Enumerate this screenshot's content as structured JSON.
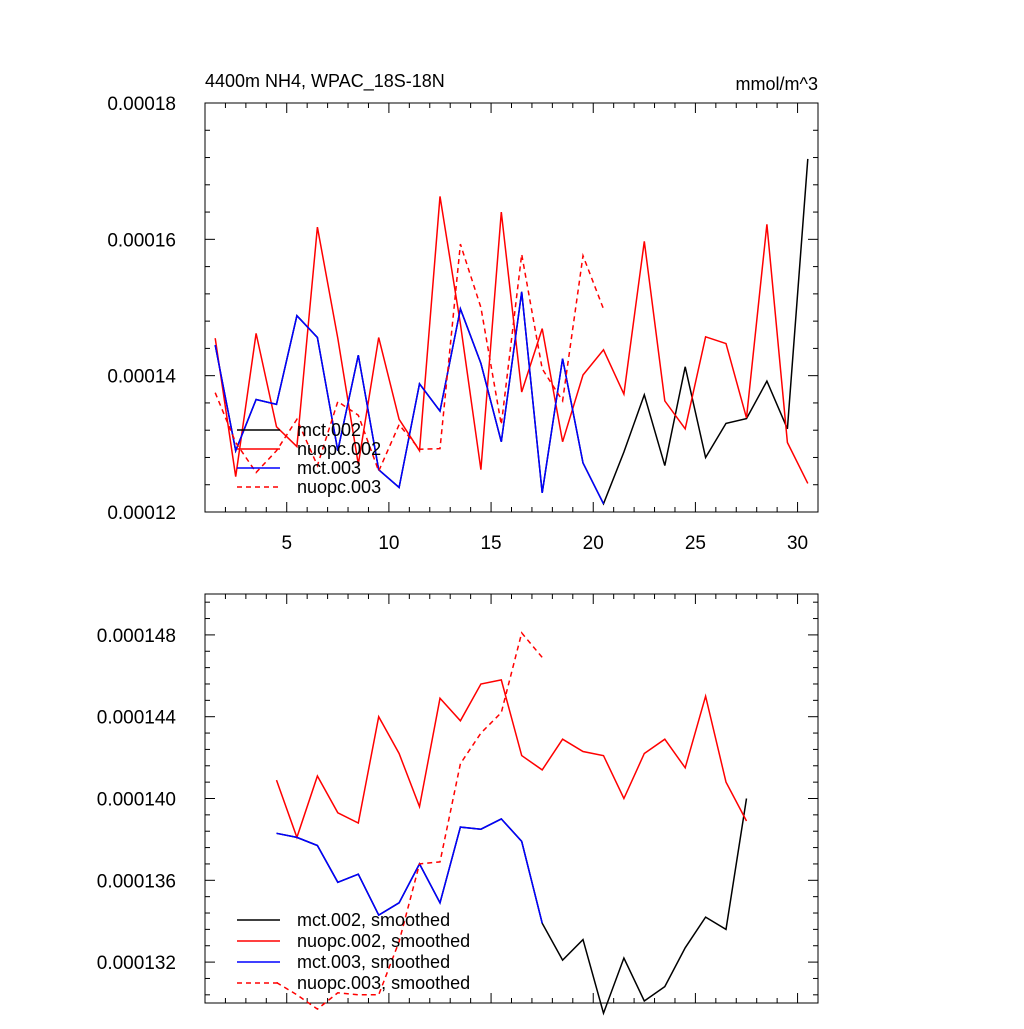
{
  "chart_data": [
    {
      "type": "line",
      "title": "4400m NH4, WPAC_18S-18N",
      "units_label": "mmol/m^3",
      "xlabel": "",
      "ylabel": "",
      "xlim": [
        1,
        31
      ],
      "ylim": [
        0.00012,
        0.00018
      ],
      "xticks": [
        5,
        10,
        15,
        20,
        25,
        30
      ],
      "xtick_labels": [
        "5",
        "10",
        "15",
        "20",
        "25",
        "30"
      ],
      "yticks": [
        0.00012,
        0.00014,
        0.00016,
        0.00018
      ],
      "ytick_labels": [
        "0.00012",
        "0.00014",
        "0.00016",
        "0.00018"
      ],
      "legend_position": "bottom-left",
      "series": [
        {
          "name": "mct.002",
          "color": "#000000",
          "dash": "solid",
          "x": [
            1.5,
            2.5,
            3.5,
            4.5,
            5.5,
            6.5,
            7.5,
            8.5,
            9.5,
            10.5,
            11.5,
            12.5,
            13.5,
            14.5,
            15.5,
            16.5,
            17.5,
            18.5,
            19.5,
            20.5,
            21.5,
            22.5,
            23.5,
            24.5,
            25.5,
            26.5,
            27.5,
            28.5,
            29.5,
            30.5
          ],
          "values": [
            0.0001445,
            0.000129,
            0.0001365,
            0.0001358,
            0.0001488,
            0.0001456,
            0.000129,
            0.000143,
            0.0001262,
            0.0001236,
            0.0001388,
            0.0001348,
            0.0001498,
            0.0001418,
            0.0001303,
            0.0001523,
            0.0001228,
            0.0001425,
            0.0001272,
            0.0001212,
            0.0001288,
            0.0001372,
            0.0001268,
            0.0001413,
            0.000128,
            0.000133,
            0.0001337,
            0.0001392,
            0.0001322,
            0.0001718
          ]
        },
        {
          "name": "nuopc.002",
          "color": "#ff0000",
          "dash": "solid",
          "x": [
            1.5,
            2.5,
            3.5,
            4.5,
            5.5,
            6.5,
            7.5,
            8.5,
            9.5,
            10.5,
            11.5,
            12.5,
            13.5,
            14.5,
            15.5,
            16.5,
            17.5,
            18.5,
            19.5,
            20.5,
            21.5,
            22.5,
            23.5,
            24.5,
            25.5,
            26.5,
            27.5,
            28.5,
            29.5,
            30.5
          ],
          "values": [
            0.0001455,
            0.0001252,
            0.0001462,
            0.0001325,
            0.0001296,
            0.0001618,
            0.0001455,
            0.000127,
            0.0001456,
            0.0001336,
            0.000129,
            0.0001663,
            0.0001476,
            0.0001262,
            0.000164,
            0.0001376,
            0.0001469,
            0.0001303,
            0.0001401,
            0.0001438,
            0.0001373,
            0.0001597,
            0.0001363,
            0.0001322,
            0.0001457,
            0.0001447,
            0.0001338,
            0.0001622,
            0.0001302,
            0.0001242
          ]
        },
        {
          "name": "mct.003",
          "color": "#0000ff",
          "dash": "solid",
          "x": [
            1.5,
            2.5,
            3.5,
            4.5,
            5.5,
            6.5,
            7.5,
            8.5,
            9.5,
            10.5,
            11.5,
            12.5,
            13.5,
            14.5,
            15.5,
            16.5,
            17.5,
            18.5,
            19.5,
            20.5
          ],
          "values": [
            0.0001445,
            0.000129,
            0.0001365,
            0.0001358,
            0.0001488,
            0.0001456,
            0.000129,
            0.000143,
            0.0001262,
            0.0001236,
            0.0001388,
            0.0001348,
            0.0001498,
            0.0001418,
            0.0001303,
            0.0001523,
            0.0001228,
            0.0001425,
            0.0001272,
            0.0001212
          ]
        },
        {
          "name": "nuopc.003",
          "color": "#ff0000",
          "dash": "dashed",
          "x": [
            1.5,
            2.5,
            3.5,
            4.5,
            5.5,
            6.5,
            7.5,
            8.5,
            9.5,
            10.5,
            11.5,
            12.5,
            13.5,
            14.5,
            15.5,
            16.5,
            17.5,
            18.5,
            19.5,
            20.5
          ],
          "values": [
            0.0001375,
            0.0001302,
            0.0001258,
            0.000129,
            0.0001336,
            0.0001268,
            0.0001362,
            0.0001342,
            0.000126,
            0.0001328,
            0.0001292,
            0.0001293,
            0.0001593,
            0.00015,
            0.0001328,
            0.0001578,
            0.000141,
            0.0001363,
            0.0001576,
            0.0001498
          ]
        }
      ]
    },
    {
      "type": "line",
      "title": "",
      "xlabel": "",
      "ylabel": "",
      "xlim": [
        1,
        31
      ],
      "ylim": [
        0.00013,
        0.00015
      ],
      "xticks": [
        5,
        10,
        15,
        20,
        25,
        30
      ],
      "xtick_labels": [],
      "yticks": [
        0.000132,
        0.000136,
        0.00014,
        0.000144,
        0.000148
      ],
      "ytick_labels": [
        "0.000132",
        "0.000136",
        "0.000140",
        "0.000144",
        "0.000148"
      ],
      "legend_position": "bottom-left",
      "series": [
        {
          "name": "mct.002, smoothed",
          "color": "#000000",
          "dash": "solid",
          "x": [
            4.5,
            5.5,
            6.5,
            7.5,
            8.5,
            9.5,
            10.5,
            11.5,
            12.5,
            13.5,
            14.5,
            15.5,
            16.5,
            17.5,
            18.5,
            19.5,
            20.5,
            21.5,
            22.5,
            23.5,
            24.5,
            25.5,
            26.5,
            27.5
          ],
          "values": [
            0.0001383,
            0.0001381,
            0.0001377,
            0.0001359,
            0.0001363,
            0.0001343,
            0.0001349,
            0.0001368,
            0.0001349,
            0.0001386,
            0.0001385,
            0.000139,
            0.0001379,
            0.0001339,
            0.0001321,
            0.0001331,
            0.0001295,
            0.0001322,
            0.0001301,
            0.0001308,
            0.0001327,
            0.0001342,
            0.0001336,
            0.00014
          ]
        },
        {
          "name": "nuopc.002, smoothed",
          "color": "#ff0000",
          "dash": "solid",
          "x": [
            4.5,
            5.5,
            6.5,
            7.5,
            8.5,
            9.5,
            10.5,
            11.5,
            12.5,
            13.5,
            14.5,
            15.5,
            16.5,
            17.5,
            18.5,
            19.5,
            20.5,
            21.5,
            22.5,
            23.5,
            24.5,
            25.5,
            26.5,
            27.5
          ],
          "values": [
            0.0001409,
            0.0001381,
            0.0001411,
            0.0001393,
            0.0001388,
            0.000144,
            0.0001422,
            0.0001396,
            0.0001449,
            0.0001438,
            0.0001456,
            0.0001458,
            0.0001421,
            0.0001414,
            0.0001429,
            0.0001423,
            0.0001421,
            0.00014,
            0.0001422,
            0.0001429,
            0.0001415,
            0.000145,
            0.0001408,
            0.0001389
          ]
        },
        {
          "name": "mct.003, smoothed",
          "color": "#0000ff",
          "dash": "solid",
          "x": [
            4.5,
            5.5,
            6.5,
            7.5,
            8.5,
            9.5,
            10.5,
            11.5,
            12.5,
            13.5,
            14.5,
            15.5,
            16.5,
            17.5
          ],
          "values": [
            0.0001383,
            0.0001381,
            0.0001377,
            0.0001359,
            0.0001363,
            0.0001343,
            0.0001349,
            0.0001368,
            0.0001349,
            0.0001386,
            0.0001385,
            0.000139,
            0.0001379,
            0.0001339
          ]
        },
        {
          "name": "nuopc.003, smoothed",
          "color": "#ff0000",
          "dash": "dashed",
          "x": [
            4.5,
            5.5,
            6.5,
            7.5,
            8.5,
            9.5,
            10.5,
            11.5,
            12.5,
            13.5,
            14.5,
            15.5,
            16.5,
            17.5
          ],
          "values": [
            0.000131,
            0.0001304,
            0.0001297,
            0.0001305,
            0.0001304,
            0.0001304,
            0.000133,
            0.0001368,
            0.0001369,
            0.0001417,
            0.0001432,
            0.0001442,
            0.0001481,
            0.0001469
          ]
        }
      ]
    }
  ]
}
